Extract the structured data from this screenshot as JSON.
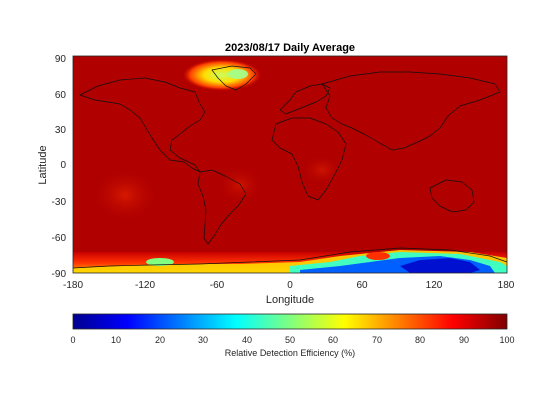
{
  "map": {
    "title": "2023/08/17 Daily Average",
    "xlabel": "Longitude",
    "ylabel": "Latitude",
    "x_ticks": [
      "-180",
      "-120",
      "-60",
      "0",
      "60",
      "120",
      "180"
    ],
    "y_ticks": [
      "90",
      "60",
      "30",
      "0",
      "-30",
      "-60",
      "-90"
    ],
    "background_value": 97
  },
  "colorbar": {
    "label": "Relative Detection Efficiency (%)",
    "ticks": [
      "0",
      "10",
      "20",
      "30",
      "40",
      "50",
      "60",
      "70",
      "80",
      "90",
      "100"
    ],
    "colormap": "jet",
    "range": [
      0,
      100
    ]
  }
}
